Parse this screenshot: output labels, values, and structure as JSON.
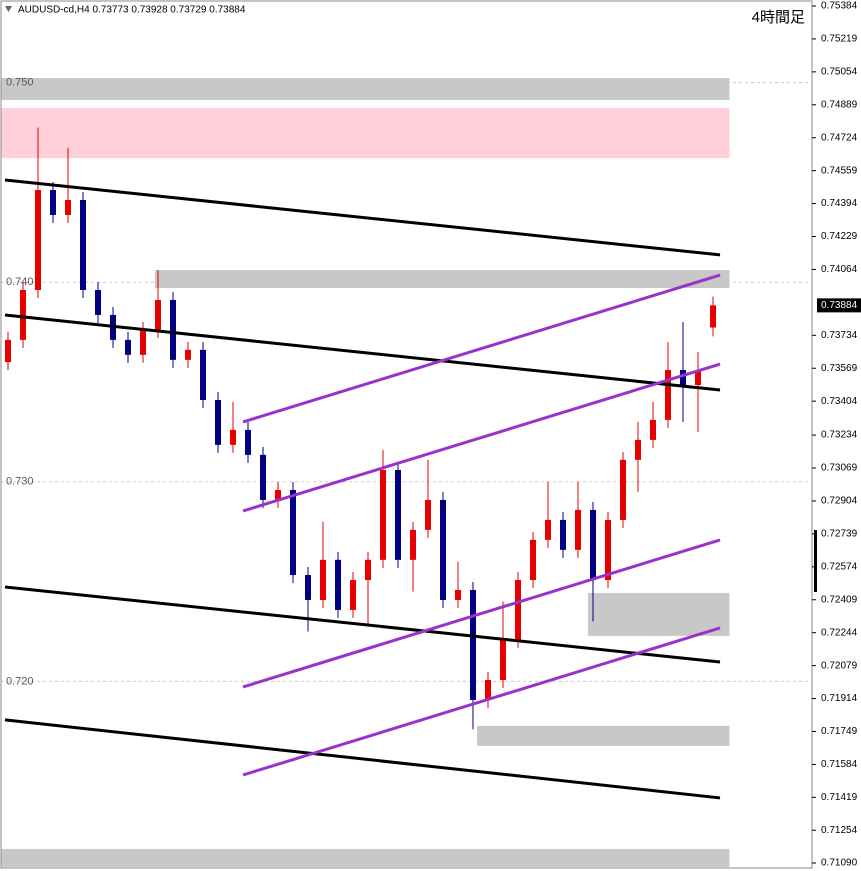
{
  "chart_data": {
    "type": "candlestick",
    "header": "AUDUSD-cd,H4  0.73773 0.73928 0.73729 0.73884",
    "timeframe": "4時間足",
    "xlim": [
      -0.5333,
      53.6
    ],
    "ylim": [
      0.71065,
      0.75414
    ],
    "up_color": "#e60000",
    "down_color": "#000080",
    "open": [
      0.736,
      0.73711,
      0.73961,
      0.74462,
      0.74337,
      0.74412,
      0.73961,
      0.73836,
      0.73711,
      0.73636,
      0.73761,
      0.73911,
      0.73611,
      0.73661,
      0.7341,
      0.73185,
      0.7326,
      0.73135,
      0.72909,
      0.72959,
      0.72533,
      0.72408,
      0.72609,
      0.72358,
      0.72508,
      0.72609,
      0.73059,
      0.72609,
      0.72759,
      0.72909,
      0.72408,
      0.72458,
      0.71907,
      0.72007,
      0.72208,
      0.72508,
      0.72709,
      0.72809,
      0.72659,
      0.72859,
      0.72508,
      0.72809,
      0.7311,
      0.7321,
      0.7331,
      0.7356,
      0.73485,
      0.73773
    ],
    "high": [
      0.73751,
      0.74001,
      0.74775,
      0.74502,
      0.74673,
      0.74452,
      0.74001,
      0.73876,
      0.73751,
      0.73801,
      0.7406,
      0.73951,
      0.73701,
      0.73701,
      0.7345,
      0.734,
      0.733,
      0.73175,
      0.72999,
      0.72999,
      0.72573,
      0.728,
      0.72649,
      0.72548,
      0.72649,
      0.7316,
      0.73099,
      0.72799,
      0.7311,
      0.72949,
      0.726,
      0.72498,
      0.72047,
      0.724,
      0.72548,
      0.72749,
      0.73,
      0.72849,
      0.73,
      0.72899,
      0.72849,
      0.7315,
      0.733,
      0.734,
      0.737,
      0.738,
      0.7365,
      0.73928
    ],
    "low": [
      0.7356,
      0.73671,
      0.73921,
      0.74297,
      0.74297,
      0.73921,
      0.73796,
      0.73671,
      0.73596,
      0.73596,
      0.73721,
      0.73571,
      0.73571,
      0.7337,
      0.73145,
      0.73145,
      0.73095,
      0.72869,
      0.72869,
      0.72493,
      0.7225,
      0.72368,
      0.72318,
      0.72318,
      0.7228,
      0.72569,
      0.72569,
      0.7245,
      0.72719,
      0.72368,
      0.72368,
      0.7176,
      0.71867,
      0.71967,
      0.72168,
      0.72468,
      0.72669,
      0.72619,
      0.72619,
      0.723,
      0.72468,
      0.72769,
      0.7295,
      0.7317,
      0.7327,
      0.733,
      0.7325,
      0.73729
    ],
    "close": [
      0.73711,
      0.73961,
      0.74462,
      0.74337,
      0.74412,
      0.73961,
      0.73836,
      0.73711,
      0.73636,
      0.73761,
      0.73911,
      0.73611,
      0.73661,
      0.7341,
      0.73185,
      0.7326,
      0.73135,
      0.72909,
      0.72959,
      0.72533,
      0.72408,
      0.72609,
      0.72358,
      0.72508,
      0.72609,
      0.73059,
      0.72609,
      0.72759,
      0.72909,
      0.72408,
      0.72458,
      0.71907,
      0.72007,
      0.72208,
      0.72508,
      0.72709,
      0.72809,
      0.72659,
      0.72859,
      0.72508,
      0.72809,
      0.7311,
      0.7321,
      0.7331,
      0.7356,
      0.73485,
      0.7356,
      0.73884
    ],
    "zones": [
      {
        "color": "#c8c8c8",
        "x": [
          -0.5333,
          48.1
        ],
        "y": [
          0.74913,
          0.75023
        ]
      },
      {
        "color": "#ffd0da",
        "x": [
          -0.5333,
          48.1
        ],
        "y": [
          0.74622,
          0.74873
        ]
      },
      {
        "color": "#c8c8c8",
        "x": [
          9.8,
          48.1
        ],
        "y": [
          0.73971,
          0.74061
        ]
      },
      {
        "color": "#c8c8c8",
        "x": [
          38.67,
          48.1
        ],
        "y": [
          0.72228,
          0.72443
        ]
      },
      {
        "color": "#c8c8c8",
        "x": [
          31.27,
          48.1
        ],
        "y": [
          0.71677,
          0.71777
        ]
      },
      {
        "color": "#c8c8c8",
        "x": [
          -0.5333,
          48.1
        ],
        "y": [
          0.7107,
          0.7116
        ]
      }
    ],
    "lines": [
      {
        "color": "#000000",
        "x": [
          -0.2,
          47.47
        ],
        "y": [
          0.74512,
          0.74137
        ]
      },
      {
        "color": "#000000",
        "x": [
          -0.2,
          47.47
        ],
        "y": [
          0.73836,
          0.7346
        ]
      },
      {
        "color": "#000000",
        "x": [
          -0.2,
          47.47
        ],
        "y": [
          0.72473,
          0.72097
        ]
      },
      {
        "color": "#000000",
        "x": [
          -0.2,
          47.47
        ],
        "y": [
          0.71807,
          0.71416
        ]
      },
      {
        "color": "#9932cc",
        "x": [
          15.67,
          47.47
        ],
        "y": [
          0.733,
          0.74036
        ]
      },
      {
        "color": "#9932cc",
        "x": [
          15.67,
          47.47
        ],
        "y": [
          0.72854,
          0.7359
        ]
      },
      {
        "color": "#9932cc",
        "x": [
          15.67,
          47.47
        ],
        "y": [
          0.71972,
          0.72709
        ]
      },
      {
        "color": "#9932cc",
        "x": [
          15.67,
          47.47
        ],
        "y": [
          0.71531,
          0.72268
        ]
      }
    ],
    "yticks": [
      0.75384,
      0.75219,
      0.75054,
      0.74889,
      0.74724,
      0.74559,
      0.74394,
      0.74229,
      0.74064,
      0.73734,
      0.73569,
      0.73404,
      0.73234,
      0.73069,
      0.72904,
      0.72739,
      0.72574,
      0.72409,
      0.72244,
      0.72079,
      0.71914,
      0.71749,
      0.71584,
      0.71419,
      0.71254,
      {
        "value": 0.7109,
        "label": "0.71090"
      }
    ],
    "grid_levels": [
      {
        "value": 0.75,
        "label": "0.750"
      },
      {
        "value": 0.74,
        "label": "0.740"
      },
      {
        "value": 0.73,
        "label": "0.730"
      },
      {
        "value": 0.72,
        "label": "0.720"
      }
    ]
  }
}
